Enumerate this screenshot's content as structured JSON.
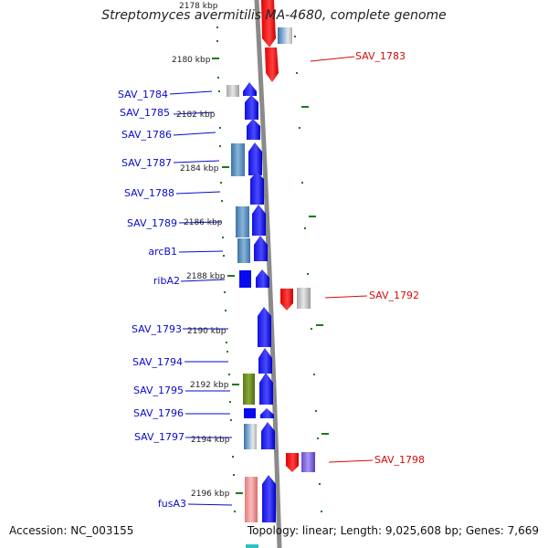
{
  "title": "Streptomyces avermitilis MA-4680, complete genome",
  "footer": {
    "accession": "Accession: NC_003155",
    "summary": "Topology: linear; Length: 9,025,608 bp; Genes: 7,669"
  },
  "colors": {
    "forward_gene": "#0a0aee",
    "reverse_gene": "#ee0a0a",
    "left_label": "#0a0ad0",
    "right_label": "#d80a0a",
    "backbone": "#8a8a8a",
    "tick": "#1a7a1a"
  },
  "genomic_scale": {
    "unit": "kbp",
    "kbp_labels": [
      "2178 kbp",
      "2180 kbp",
      "2182 kbp",
      "2184 kbp",
      "2186 kbp",
      "2188 kbp",
      "2190 kbp",
      "2192 kbp",
      "2194 kbp",
      "2196 kbp"
    ]
  },
  "left_gene_labels": [
    "SAV_1784",
    "SAV_1785",
    "SAV_1786",
    "SAV_1787",
    "SAV_1788",
    "SAV_1789",
    "arcB1",
    "ribA2",
    "SAV_1793",
    "SAV_1794",
    "SAV_1795",
    "SAV_1796",
    "SAV_1797",
    "fusA3"
  ],
  "right_gene_labels": [
    "SAV_1783",
    "SAV_1792",
    "SAV_1798"
  ]
}
